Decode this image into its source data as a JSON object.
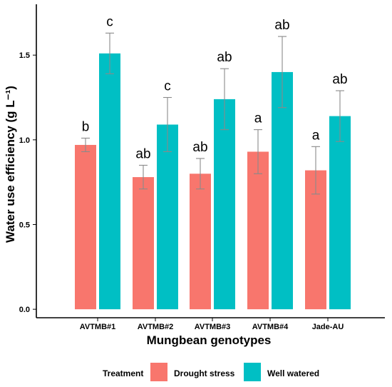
{
  "chart_data": {
    "type": "bar",
    "xlabel": "Mungbean genotypes",
    "ylabel": "Water use efficiency (g L⁻¹)",
    "ylim": [
      -0.05,
      1.8
    ],
    "yticks": [
      0.0,
      0.5,
      1.0,
      1.5
    ],
    "ytick_labels": [
      "0.0",
      "0.5",
      "1.0",
      "1.5"
    ],
    "categories": [
      "AVTMB#1",
      "AVTMB#2",
      "AVTMB#3",
      "AVTMB#4",
      "Jade-AU"
    ],
    "grid": false,
    "legend_position": "bottom",
    "legend_title": "Treatment",
    "series": [
      {
        "name": "Drought stress",
        "color": "#F8766D",
        "values": [
          0.97,
          0.78,
          0.8,
          0.93,
          0.82
        ],
        "error": [
          0.04,
          0.07,
          0.09,
          0.13,
          0.14
        ],
        "labels": [
          "b",
          "ab",
          "ab",
          "a",
          "a"
        ]
      },
      {
        "name": "Well watered",
        "color": "#00BFC4",
        "values": [
          1.51,
          1.09,
          1.24,
          1.4,
          1.14
        ],
        "error": [
          0.12,
          0.16,
          0.18,
          0.21,
          0.15
        ],
        "labels": [
          "c",
          "c",
          "ab",
          "ab",
          "ab"
        ]
      }
    ]
  }
}
